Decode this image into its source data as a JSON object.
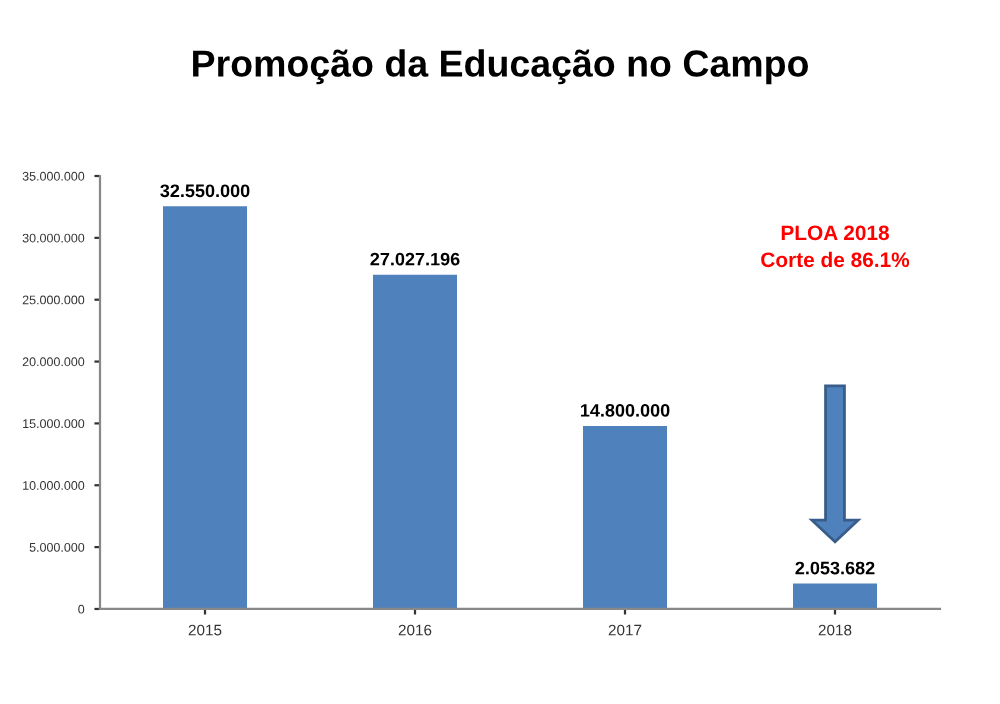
{
  "chart_data": {
    "type": "bar",
    "title": "Promoção da Educação no Campo",
    "categories": [
      "2015",
      "2016",
      "2017",
      "2018"
    ],
    "values": [
      32550000,
      27027196,
      14800000,
      2053682
    ],
    "value_labels": [
      "32.550.000",
      "27.027.196",
      "14.800.000",
      "2.053.682"
    ],
    "color": "#4f81bd",
    "ylim": [
      0,
      35000000
    ],
    "yticks": [
      {
        "value": 0,
        "label": "0"
      },
      {
        "value": 5000000,
        "label": "5.000.000"
      },
      {
        "value": 10000000,
        "label": "10.000.000"
      },
      {
        "value": 15000000,
        "label": "15.000.000"
      },
      {
        "value": 20000000,
        "label": "20.000.000"
      },
      {
        "value": 25000000,
        "label": "25.000.000"
      },
      {
        "value": 30000000,
        "label": "30.000.000"
      },
      {
        "value": 35000000,
        "label": "35.000.000"
      }
    ],
    "annotations": [
      "PLOA 2018\nCorte de 86.1%"
    ],
    "grid": false,
    "legend": false
  }
}
